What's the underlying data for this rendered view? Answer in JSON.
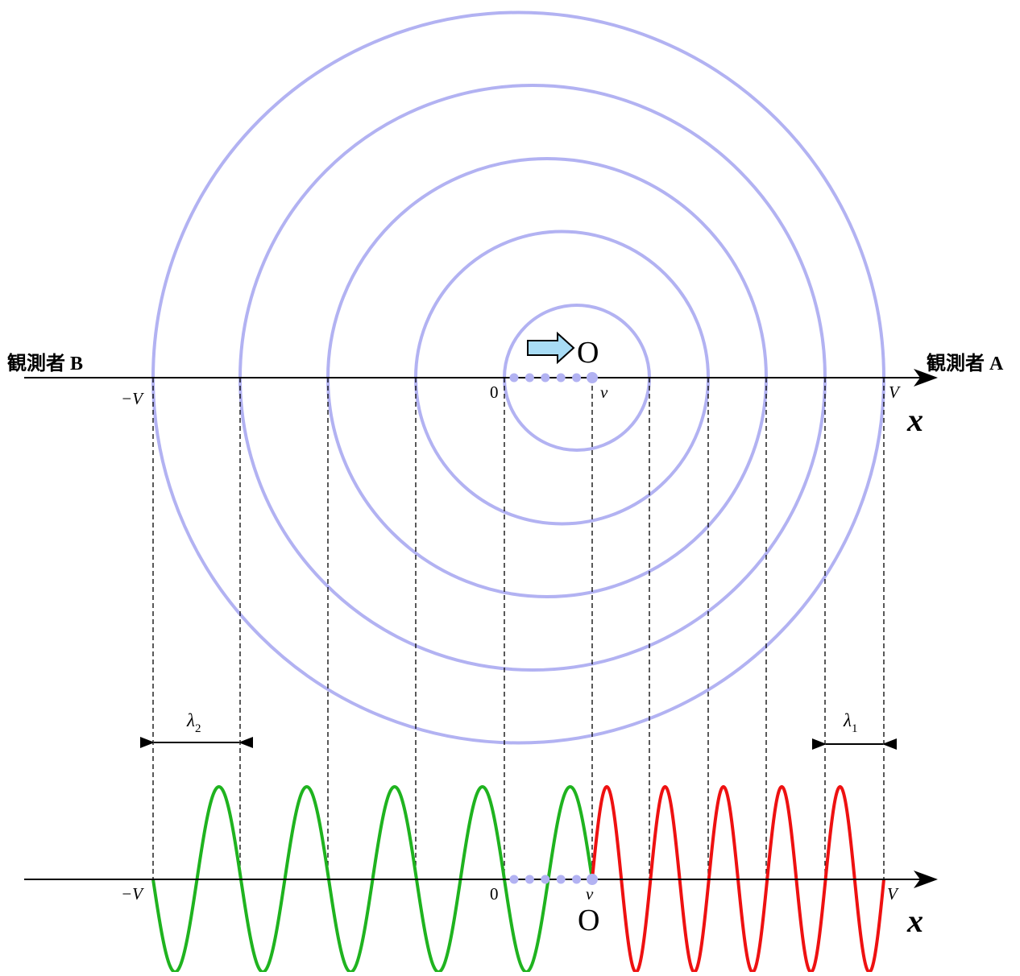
{
  "labels": {
    "observer_a": "観測者 A",
    "observer_b": "観測者 B",
    "source": "O",
    "minus_v": "−V",
    "zero": "0",
    "small_v": "v",
    "plus_v": "V",
    "axis_x": "x",
    "lambda_symbol": "λ",
    "lambda1_sub": "1",
    "lambda2_sub": "2"
  },
  "colors": {
    "wavefront": "#b2b2f2",
    "arrow_fill": "#a8dcf5",
    "left_wave": "#1fb31f",
    "right_wave": "#ee1111",
    "axis": "#000000"
  },
  "model": {
    "wavefront_count": 5,
    "emission_points": 6,
    "source_moves_toward": "observer A"
  }
}
